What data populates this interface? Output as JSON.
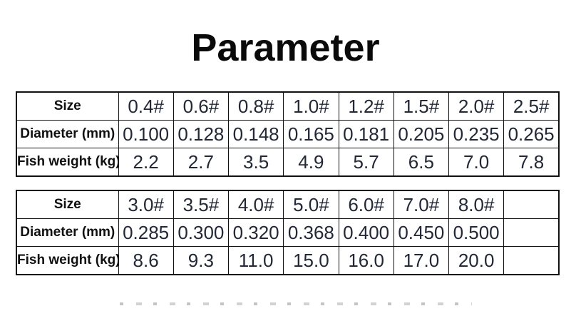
{
  "page": {
    "title": "Parameter"
  },
  "colors": {
    "background": "#ffffff",
    "title_text": "#0a0a0a",
    "label_text": "#101010",
    "value_text": "#222836",
    "table_border": "#111111"
  },
  "spec_tables": [
    {
      "name": "line-sizes-small",
      "rows": [
        {
          "label": "Size",
          "values": [
            "0.4#",
            "0.6#",
            "0.8#",
            "1.0#",
            "1.2#",
            "1.5#",
            "2.0#",
            "2.5#"
          ]
        },
        {
          "label": "Diameter (mm)",
          "values": [
            "0.100",
            "0.128",
            "0.148",
            "0.165",
            "0.181",
            "0.205",
            "0.235",
            "0.265"
          ]
        },
        {
          "label": "Fish weight (kg)",
          "values": [
            "2.2",
            "2.7",
            "3.5",
            "4.9",
            "5.7",
            "6.5",
            "7.0",
            "7.8"
          ]
        }
      ]
    },
    {
      "name": "line-sizes-large",
      "rows": [
        {
          "label": "Size",
          "values": [
            "3.0#",
            "3.5#",
            "4.0#",
            "5.0#",
            "6.0#",
            "7.0#",
            "8.0#",
            ""
          ]
        },
        {
          "label": "Diameter (mm)",
          "values": [
            "0.285",
            "0.300",
            "0.320",
            "0.368",
            "0.400",
            "0.450",
            "0.500",
            ""
          ]
        },
        {
          "label": "Fish weight (kg)",
          "values": [
            "8.6",
            "9.3",
            "11.0",
            "15.0",
            "16.0",
            "17.0",
            "20.0",
            ""
          ]
        }
      ]
    }
  ]
}
